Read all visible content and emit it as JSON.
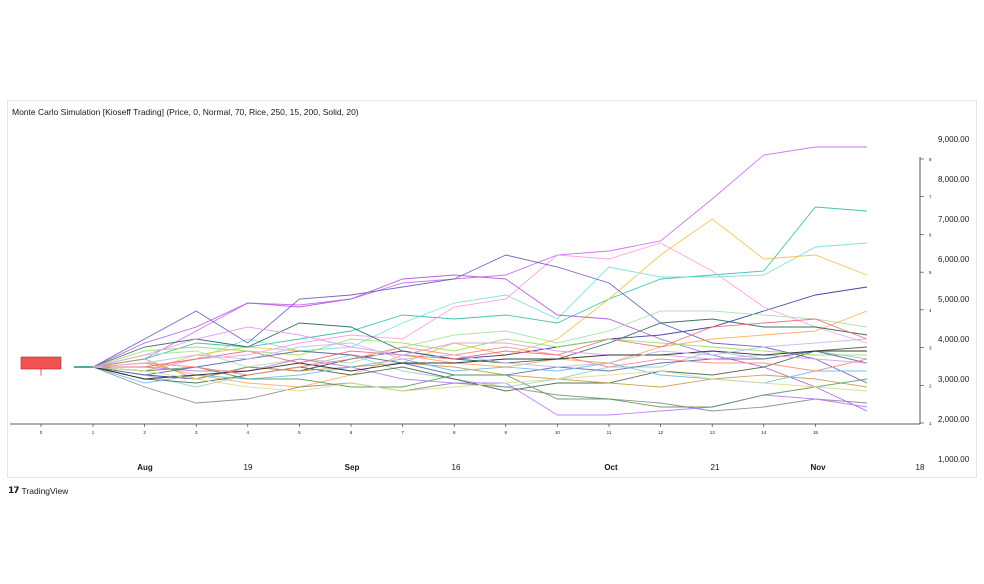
{
  "title": "Monte Carlo Simulation [Kioseff Trading] (Price, 0, Normal, 70, Rice, 250, 15, 200, Solid, 20)",
  "brand": "TradingView",
  "brand_icon": "tradingview-logo-icon",
  "chart_data": {
    "type": "line",
    "title": "Monte Carlo Simulation [Kioseff Trading] (Price, 0, Normal, 70, Rice, 250, 15, 200, Solid, 20)",
    "x": [
      0,
      1,
      2,
      3,
      4,
      5,
      6,
      7,
      8,
      9,
      10,
      11,
      12,
      13,
      14,
      15
    ],
    "x_tick_labels": [
      "0",
      "1",
      "2",
      "3",
      "4",
      "5",
      "6",
      "7",
      "8",
      "9",
      "10",
      "11",
      "12",
      "13",
      "14",
      "15"
    ],
    "date_ticks": [
      "Aug",
      "19",
      "Sep",
      "16",
      "Oct",
      "21",
      "Nov",
      "18"
    ],
    "y_ticks": [
      1000,
      2000,
      3000,
      4000,
      5000,
      6000,
      7000,
      8000,
      9000
    ],
    "y_tick_labels": [
      "1,000.00",
      "2,000.00",
      "3,000.00",
      "4,000.00",
      "5,000.00",
      "6,000.00",
      "7,000.00",
      "8,000.00",
      "9,000.00"
    ],
    "y2_ticks": [
      1,
      2,
      3,
      4,
      5,
      6,
      7,
      8
    ],
    "ylim": [
      600,
      9600
    ],
    "candle": {
      "open": 3550,
      "close": 3250,
      "high": 3550,
      "low": 3080,
      "color": "#f05350"
    },
    "series": [
      {
        "color": "#cc66ee",
        "values": [
          3300,
          3500,
          4200,
          4900,
          4850,
          5000,
          5400,
          5500,
          5600,
          6100,
          6200,
          6450,
          7500,
          8600,
          8800,
          8800
        ]
      },
      {
        "color": "#33bbaa",
        "values": [
          3300,
          3500,
          3900,
          3800,
          4000,
          4200,
          4600,
          4500,
          4600,
          4400,
          5000,
          5500,
          5600,
          5700,
          7300,
          7200
        ]
      },
      {
        "color": "#77dddd",
        "values": [
          3300,
          3300,
          3500,
          4000,
          3700,
          3800,
          4400,
          4900,
          5100,
          4500,
          5800,
          5550,
          5550,
          5600,
          6300,
          6400
        ]
      },
      {
        "color": "#f0c040",
        "values": [
          3300,
          3200,
          3600,
          3800,
          3700,
          3600,
          3400,
          3900,
          3600,
          4000,
          5000,
          6100,
          7000,
          6000,
          6100,
          5600
        ]
      },
      {
        "color": "#333399",
        "values": [
          3300,
          3100,
          3000,
          3300,
          3200,
          3500,
          3700,
          3500,
          3600,
          3800,
          4000,
          4100,
          4300,
          4700,
          5100,
          5300
        ]
      },
      {
        "color": "#ff99dd",
        "values": [
          3300,
          3200,
          3500,
          3600,
          3900,
          4100,
          4000,
          4800,
          5000,
          6100,
          6000,
          6400,
          5700,
          4800,
          4300,
          3900
        ]
      },
      {
        "color": "#6655bb",
        "values": [
          3300,
          4000,
          4700,
          3900,
          5000,
          5100,
          5300,
          5500,
          6100,
          5800,
          5400,
          4400,
          3900,
          3800,
          3500,
          2900
        ]
      },
      {
        "color": "#aa55dd",
        "values": [
          3300,
          3900,
          4300,
          4900,
          4800,
          5000,
          5500,
          5600,
          5500,
          4600,
          4500,
          4000,
          3600,
          3300,
          2800,
          2200
        ]
      },
      {
        "color": "#aaddaa",
        "values": [
          3300,
          3600,
          3700,
          3300,
          3500,
          3400,
          3800,
          4100,
          4200,
          3900,
          4200,
          4700,
          4700,
          4600,
          4500,
          4300
        ]
      },
      {
        "color": "#ffaa55",
        "values": [
          3300,
          3400,
          3100,
          2900,
          2800,
          3100,
          3600,
          3400,
          3300,
          3500,
          3400,
          3800,
          4000,
          4100,
          4200,
          4700
        ]
      },
      {
        "color": "#99cccc",
        "values": [
          3300,
          3100,
          2800,
          3100,
          3300,
          3600,
          3200,
          3000,
          2800,
          3000,
          3300,
          3300,
          3700,
          3500,
          3700,
          3500
        ]
      },
      {
        "color": "#226655",
        "values": [
          3300,
          3800,
          4000,
          3800,
          4400,
          4300,
          3700,
          3500,
          3400,
          3500,
          3900,
          4400,
          4500,
          4300,
          4300,
          4100
        ]
      },
      {
        "color": "#888888",
        "values": [
          3300,
          2800,
          2400,
          2500,
          2800,
          2900,
          2700,
          2900,
          2800,
          2600,
          2500,
          2400,
          2200,
          2300,
          2500,
          2400
        ]
      },
      {
        "color": "#bb77ff",
        "values": [
          3300,
          3300,
          3200,
          3200,
          3500,
          3300,
          3000,
          2900,
          2900,
          2100,
          2100,
          2200,
          2300,
          2600,
          2500,
          2300
        ]
      },
      {
        "color": "#446644",
        "values": [
          3300,
          3000,
          2900,
          3100,
          3300,
          3100,
          3300,
          3000,
          2700,
          2900,
          2900,
          3200,
          3100,
          3300,
          3700,
          3800
        ]
      },
      {
        "color": "#ee6677",
        "values": [
          3300,
          3300,
          3500,
          3700,
          3400,
          3700,
          3600,
          3500,
          3700,
          3600,
          4000,
          3800,
          4300,
          4400,
          4500,
          4000
        ]
      },
      {
        "color": "#cc9944",
        "values": [
          3300,
          3500,
          3000,
          3300,
          3200,
          3300,
          3400,
          3300,
          3100,
          3000,
          2900,
          2800,
          3000,
          3100,
          3000,
          2800
        ]
      },
      {
        "color": "#99dd66",
        "values": [
          3300,
          3700,
          3800,
          3700,
          3600,
          4000,
          3900,
          3700,
          4000,
          3800,
          4000,
          3900,
          3800,
          3700,
          3600,
          3600
        ]
      },
      {
        "color": "#5566aa",
        "values": [
          3300,
          3100,
          3300,
          3500,
          3700,
          3600,
          3400,
          3100,
          3100,
          3300,
          3200,
          3400,
          3500,
          3500,
          3700,
          3400
        ]
      },
      {
        "color": "#dd99ee",
        "values": [
          3300,
          3600,
          4000,
          4300,
          4100,
          3800,
          3600,
          3900,
          3900,
          3700,
          3600,
          3600,
          3500,
          3600,
          3500,
          3400
        ]
      },
      {
        "color": "#66bbee",
        "values": [
          3300,
          2900,
          3100,
          3000,
          3100,
          3300,
          3500,
          3200,
          3300,
          3200,
          3400,
          3100,
          3000,
          2900,
          3200,
          3200
        ]
      },
      {
        "color": "#559955",
        "values": [
          3300,
          3200,
          3300,
          3000,
          3000,
          2800,
          2800,
          3100,
          3100,
          2500,
          2500,
          2300,
          2300,
          2600,
          2800,
          3000
        ]
      },
      {
        "color": "#222222",
        "values": [
          3300,
          3000,
          3100,
          3200,
          3400,
          3200,
          3400,
          3400,
          3500,
          3500,
          3600,
          3600,
          3700,
          3600,
          3700,
          3700
        ]
      },
      {
        "color": "#ff8877",
        "values": [
          3300,
          3400,
          3300,
          3100,
          3300,
          3500,
          3800,
          3600,
          3800,
          3600,
          3300,
          3500,
          3400,
          3400,
          3200,
          3500
        ]
      },
      {
        "color": "#bbbbee",
        "values": [
          3300,
          3400,
          3600,
          3500,
          3800,
          3900,
          3500,
          3600,
          3400,
          3300,
          3400,
          3700,
          3600,
          3800,
          3900,
          4000
        ]
      },
      {
        "color": "#dddd88",
        "values": [
          3300,
          3200,
          3000,
          2800,
          2700,
          2900,
          2700,
          2800,
          2900,
          3000,
          3100,
          3200,
          3000,
          2900,
          2800,
          2700
        ]
      }
    ]
  }
}
